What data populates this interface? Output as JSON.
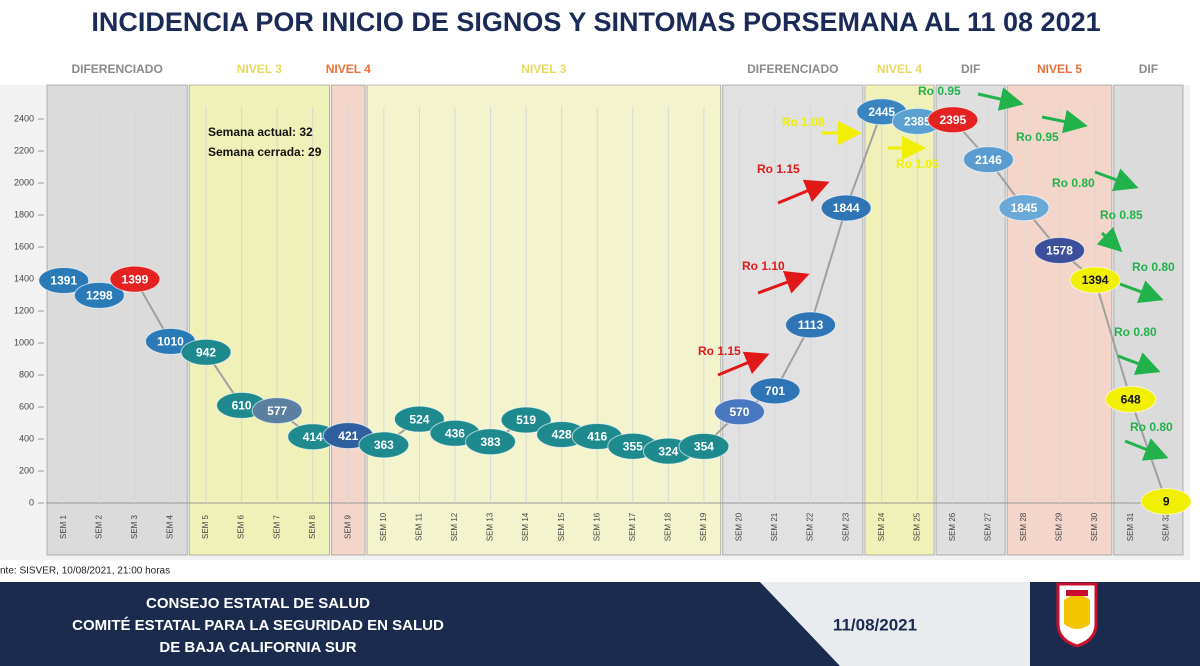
{
  "chart_data": {
    "type": "line",
    "title": "INCIDENCIA POR INICIO DE SIGNOS Y SINTOMAS PORSEMANA AL 11 08 2021",
    "categories": [
      "SEM 1",
      "SEM 2",
      "SEM 3",
      "SEM 4",
      "SEM 5",
      "SEM 6",
      "SEM 7",
      "SEM 8",
      "SEM 9",
      "SEM 10",
      "SEM 11",
      "SEM 12",
      "SEM 13",
      "SEM 14",
      "SEM 15",
      "SEM 16",
      "SEM 17",
      "SEM 18",
      "SEM 19",
      "SEM 20",
      "SEM 21",
      "SEM 22",
      "SEM 23",
      "SEM 24",
      "SEM 25",
      "SEM 26",
      "SEM 27",
      "SEM 28",
      "SEM 29",
      "SEM 30",
      "SEM 31",
      "SEM 32"
    ],
    "series": [
      {
        "color": "#a0a0a0",
        "values": [
          1391,
          1298,
          1399,
          1010,
          942,
          610,
          577,
          414,
          421,
          363,
          524,
          436,
          383,
          519,
          428,
          416,
          355,
          324,
          354,
          570,
          701,
          1113,
          1844,
          2445,
          2385,
          2395,
          2146,
          1845,
          1578,
          1394,
          648,
          9
        ],
        "point_colors": [
          "#2a7ab8",
          "#2a7ab8",
          "#e52222",
          "#2a7ab8",
          "#1f8a8e",
          "#1f8a8e",
          "#5b7f9f",
          "#1f8a8e",
          "#2f5f9f",
          "#1f8a8e",
          "#1f8a8e",
          "#1f8a8e",
          "#1f8a8e",
          "#1f8a8e",
          "#1f8a8e",
          "#1f8a8e",
          "#1f8a8e",
          "#1f8a8e",
          "#1f8a8e",
          "#4a78c0",
          "#2f74b5",
          "#2f74b5",
          "#2f74b5",
          "#3a85c0",
          "#5aa0d0",
          "#e52222",
          "#5a9cd0",
          "#6aa8d8",
          "#3d4f9a",
          "#f0f000",
          "#f0f000",
          "#f0f000"
        ]
      }
    ],
    "ylim": [
      0,
      2600
    ],
    "yticks": [
      0,
      200,
      400,
      600,
      800,
      1000,
      1200,
      1400,
      1600,
      1800,
      2000,
      2200,
      2400
    ],
    "bands": [
      {
        "label": "DIFERENCIADO",
        "from": "SEM 1",
        "to": "SEM 4",
        "fill": "#c8c8c8",
        "label_color": "#8a8a8a"
      },
      {
        "label": "NIVEL 3",
        "from": "SEM 5",
        "to": "SEM 8",
        "fill": "#eef08a",
        "label_color": "#e8d860"
      },
      {
        "label": "NIVEL 4",
        "from": "SEM 9",
        "to": "SEM 9",
        "fill": "#f4c0a8",
        "label_color": "#e8703a"
      },
      {
        "label": "NIVEL 3",
        "from": "SEM 10",
        "to": "SEM 19",
        "fill": "#f4f6b0",
        "label_color": "#e8d860"
      },
      {
        "label": "DIFERENCIADO",
        "from": "SEM 20",
        "to": "SEM 23",
        "fill": "#d4d4d4",
        "label_color": "#8a8a8a"
      },
      {
        "label": "NIVEL 4",
        "from": "SEM 24",
        "to": "SEM 25",
        "fill": "#eef08a",
        "label_color": "#e8d860"
      },
      {
        "label": "DIF",
        "from": "SEM 26",
        "to": "SEM 27",
        "fill": "#d0d0d0",
        "label_color": "#8a8a8a"
      },
      {
        "label": "NIVEL 5",
        "from": "SEM 28",
        "to": "SEM 30",
        "fill": "#f4c0a8",
        "label_color": "#e8703a"
      },
      {
        "label": "DIF",
        "from": "SEM 31",
        "to": "SEM 32",
        "fill": "#c8c8c8",
        "label_color": "#8a8a8a"
      }
    ],
    "annotations": [
      {
        "text": "Ro 1.15",
        "color": "#e01818"
      },
      {
        "text": "Ro 1.10",
        "color": "#e01818"
      },
      {
        "text": "Ro 1.15",
        "color": "#e01818"
      },
      {
        "text": "Ro 1.08",
        "color": "#f0f000"
      },
      {
        "text": "Ro 1.05",
        "color": "#f0f000"
      },
      {
        "text": "Ro 0.95",
        "color": "#22b24c"
      },
      {
        "text": "Ro 0.95",
        "color": "#22b24c"
      },
      {
        "text": "Ro 0.80",
        "color": "#22b24c"
      },
      {
        "text": "Ro 0.85",
        "color": "#22b24c"
      },
      {
        "text": "Ro 0.80",
        "color": "#22b24c"
      },
      {
        "text": "Ro 0.80",
        "color": "#22b24c"
      },
      {
        "text": "Ro 0.80",
        "color": "#22b24c"
      }
    ],
    "note": [
      "Semana actual: 32",
      "Semana cerrada: 29"
    ],
    "source": "nte: SISVER, 10/08/2021, 21:00 horas"
  },
  "footer": {
    "lines": [
      "CONSEJO ESTATAL DE SALUD",
      "COMITÉ ESTATAL PARA LA SEGURIDAD EN SALUD",
      "DE BAJA CALIFORNIA SUR"
    ],
    "date": "11/08/2021"
  }
}
